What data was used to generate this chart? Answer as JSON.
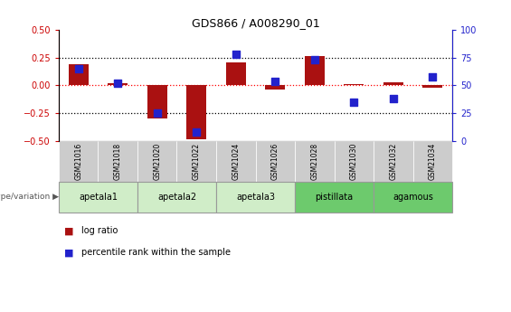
{
  "title": "GDS866 / A008290_01",
  "samples": [
    "GSM21016",
    "GSM21018",
    "GSM21020",
    "GSM21022",
    "GSM21024",
    "GSM21026",
    "GSM21028",
    "GSM21030",
    "GSM21032",
    "GSM21034"
  ],
  "log_ratio": [
    0.19,
    0.02,
    -0.3,
    -0.48,
    0.21,
    -0.04,
    0.26,
    0.01,
    0.03,
    -0.02
  ],
  "percentile_rank": [
    65,
    52,
    25,
    8,
    78,
    54,
    73,
    35,
    38,
    58
  ],
  "groups": [
    {
      "label": "apetala1",
      "samples": [
        "GSM21016",
        "GSM21018"
      ],
      "color": "#d0edc8"
    },
    {
      "label": "apetala2",
      "samples": [
        "GSM21020",
        "GSM21022"
      ],
      "color": "#d0edc8"
    },
    {
      "label": "apetala3",
      "samples": [
        "GSM21024",
        "GSM21026"
      ],
      "color": "#d0edc8"
    },
    {
      "label": "pistillata",
      "samples": [
        "GSM21028",
        "GSM21030"
      ],
      "color": "#6dca6d"
    },
    {
      "label": "agamous",
      "samples": [
        "GSM21032",
        "GSM21034"
      ],
      "color": "#6dca6d"
    }
  ],
  "ylim_left": [
    -0.5,
    0.5
  ],
  "ylim_right": [
    0,
    100
  ],
  "yticks_left": [
    -0.5,
    -0.25,
    0.0,
    0.25,
    0.5
  ],
  "yticks_right": [
    0,
    25,
    50,
    75,
    100
  ],
  "hlines_dotted": [
    -0.25,
    0.25
  ],
  "hline_red": 0.0,
  "bar_color": "#AA1111",
  "dot_color": "#2222CC",
  "bar_width": 0.5,
  "dot_size": 28,
  "left_tick_color": "#cc0000",
  "right_tick_color": "#2222CC",
  "sample_box_color": "#cccccc",
  "group_border_color": "#999999",
  "geno_label": "genotype/variation",
  "legend_bar_label": "log ratio",
  "legend_dot_label": "percentile rank within the sample"
}
